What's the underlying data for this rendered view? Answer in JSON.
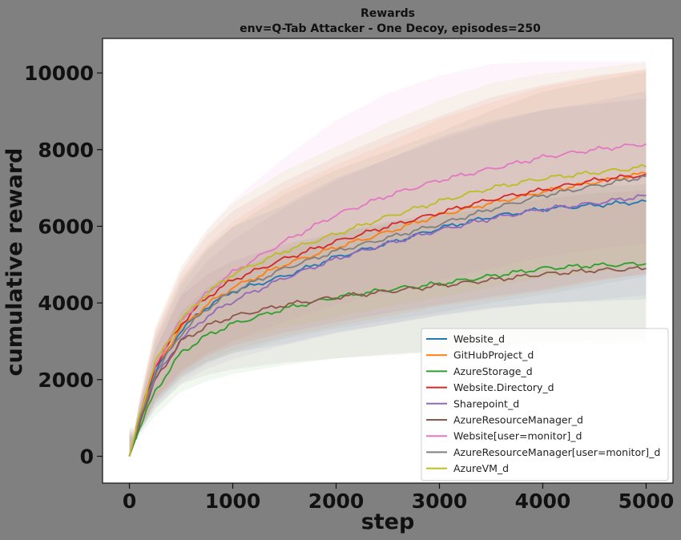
{
  "chart_data": {
    "type": "line",
    "title": "Rewards",
    "subtitle": "env=Q-Tab Attacker - One Decoy, episodes=250",
    "xlabel": "step",
    "ylabel": "cumulative reward",
    "xlim": [
      -260,
      5260
    ],
    "ylim": [
      -700,
      10900
    ],
    "xticks": [
      "0",
      "1000",
      "2000",
      "3000",
      "4000",
      "5000"
    ],
    "yticks": [
      "0",
      "2000",
      "4000",
      "6000",
      "8000",
      "10000"
    ],
    "grid": false,
    "legend_position": "lower-right",
    "shaded_band": "standard deviation around each series",
    "series": [
      {
        "name": "Website_d",
        "color": "#1f77b4",
        "x": [
          0,
          100,
          250,
          500,
          750,
          1000,
          1500,
          2000,
          2500,
          3000,
          3500,
          4000,
          4500,
          5000
        ],
        "values": [
          0,
          1000,
          2200,
          3300,
          3900,
          4300,
          4700,
          5200,
          5550,
          5950,
          6250,
          6450,
          6550,
          6650
        ]
      },
      {
        "name": "GitHubProject_d",
        "color": "#ff7f0e",
        "x": [
          0,
          100,
          250,
          500,
          750,
          1000,
          1500,
          2000,
          2500,
          3000,
          3500,
          4000,
          4500,
          5000
        ],
        "values": [
          0,
          1050,
          2300,
          3350,
          3950,
          4400,
          5000,
          5450,
          5850,
          6300,
          6600,
          6900,
          7150,
          7380
        ]
      },
      {
        "name": "AzureStorage_d",
        "color": "#2ca02c",
        "x": [
          0,
          100,
          250,
          500,
          750,
          1000,
          1500,
          2000,
          2500,
          3000,
          3500,
          4000,
          4500,
          5000
        ],
        "values": [
          0,
          750,
          1700,
          2700,
          3150,
          3450,
          3850,
          4150,
          4350,
          4500,
          4700,
          4900,
          4980,
          5020
        ]
      },
      {
        "name": "Website.Directory_d",
        "color": "#d62728",
        "x": [
          0,
          100,
          250,
          500,
          750,
          1000,
          1500,
          2000,
          2500,
          3000,
          3500,
          4000,
          4500,
          5000
        ],
        "values": [
          0,
          1050,
          2350,
          3450,
          4150,
          4600,
          5150,
          5600,
          6000,
          6350,
          6700,
          6950,
          7200,
          7350
        ]
      },
      {
        "name": "Sharepoint_d",
        "color": "#9467bd",
        "x": [
          0,
          100,
          250,
          500,
          750,
          1000,
          1500,
          2000,
          2500,
          3000,
          3500,
          4000,
          4500,
          5000
        ],
        "values": [
          0,
          950,
          2000,
          3050,
          3650,
          4050,
          4650,
          5150,
          5550,
          5900,
          6200,
          6450,
          6600,
          6800
        ]
      },
      {
        "name": "AzureResourceManager_d",
        "color": "#8c564b",
        "x": [
          0,
          100,
          250,
          500,
          750,
          1000,
          1500,
          2000,
          2500,
          3000,
          3500,
          4000,
          4500,
          5000
        ],
        "values": [
          0,
          900,
          2000,
          3000,
          3400,
          3650,
          3950,
          4150,
          4300,
          4450,
          4600,
          4750,
          4850,
          4900
        ]
      },
      {
        "name": "Website[user=monitor]_d",
        "color": "#e377c2",
        "x": [
          0,
          100,
          250,
          500,
          750,
          1000,
          1500,
          2000,
          2500,
          3000,
          3500,
          4000,
          4500,
          5000
        ],
        "values": [
          0,
          1050,
          2400,
          3550,
          4250,
          4800,
          5600,
          6300,
          6800,
          7200,
          7500,
          7800,
          8000,
          8150
        ]
      },
      {
        "name": "AzureResourceManager[user=monitor]_d",
        "color": "#7f7f7f",
        "x": [
          0,
          100,
          250,
          500,
          750,
          1000,
          1500,
          2000,
          2500,
          3000,
          3500,
          4000,
          4500,
          5000
        ],
        "values": [
          0,
          950,
          2150,
          3200,
          3850,
          4300,
          4900,
          5350,
          5700,
          6050,
          6450,
          6800,
          7050,
          7300
        ]
      },
      {
        "name": "AzureVM_d",
        "color": "#bcbd22",
        "x": [
          0,
          100,
          250,
          500,
          750,
          1000,
          1500,
          2000,
          2500,
          3000,
          3500,
          4000,
          4500,
          5000
        ],
        "values": [
          0,
          1100,
          2450,
          3550,
          4250,
          4750,
          5350,
          5800,
          6250,
          6650,
          7000,
          7250,
          7400,
          7550
        ]
      }
    ]
  }
}
